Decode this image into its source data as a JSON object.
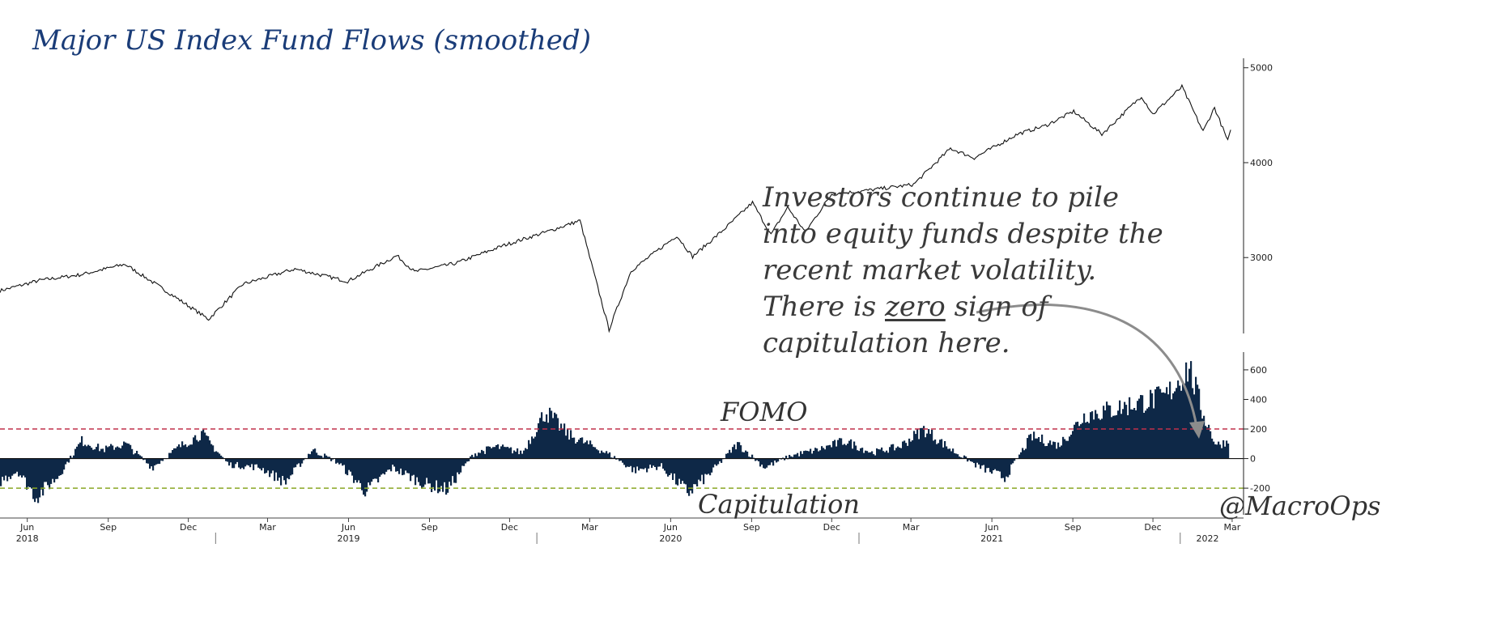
{
  "title": "Major US Index Fund Flows (smoothed)",
  "annotation": {
    "line1": "Investors continue to pile",
    "line2": "into equity funds despite the",
    "line3": "recent market volatility.",
    "line4_pre": "There is ",
    "line4_em": "zero",
    "line4_post": " sign of",
    "line5": "capitulation here."
  },
  "labels": {
    "fomo": "FOMO",
    "capitulation": "Capitulation",
    "handle": "@MacroOps"
  },
  "colors": {
    "price_line": "#111111",
    "flow_bars": "#0e2847",
    "fomo_line": "#c0304a",
    "capitulation_line": "#8aa824",
    "title": "#1a3c78",
    "arrow": "#8c8c8c"
  },
  "chart_data": [
    {
      "type": "line",
      "series": [
        {
          "x": [
            "2018-05-01",
            "2018-06-15",
            "2018-08-01",
            "2018-09-20",
            "2018-10-25",
            "2018-12-24",
            "2019-02-01",
            "2019-04-01",
            "2019-05-31",
            "2019-07-26",
            "2019-08-15",
            "2019-10-01",
            "2019-11-25",
            "2020-01-15",
            "2020-02-19",
            "2020-03-23",
            "2020-04-17",
            "2020-06-08",
            "2020-06-26",
            "2020-08-01",
            "2020-09-02",
            "2020-09-23",
            "2020-10-12",
            "2020-11-01",
            "2020-12-01",
            "2021-01-04",
            "2021-03-04",
            "2021-04-15",
            "2021-05-12",
            "2021-06-30",
            "2021-08-01",
            "2021-09-02",
            "2021-10-04",
            "2021-11-18",
            "2021-12-01",
            "2022-01-03",
            "2022-01-27",
            "2022-02-09",
            "2022-02-24",
            "2022-03-01"
          ],
          "values": [
            2650,
            2760,
            2820,
            2930,
            2720,
            2350,
            2720,
            2880,
            2750,
            3020,
            2850,
            2940,
            3130,
            3280,
            3390,
            2240,
            2860,
            3230,
            3010,
            3300,
            3580,
            3240,
            3530,
            3270,
            3670,
            3700,
            3770,
            4150,
            4050,
            4300,
            4390,
            4540,
            4300,
            4700,
            4510,
            4800,
            4330,
            4580,
            4230,
            4380
          ]
        }
      ],
      "ylim": [
        2200,
        5100
      ],
      "yticks": [
        3000,
        4000,
        5000
      ]
    },
    {
      "type": "bar",
      "series": [
        {
          "x": [
            "2018-05-01",
            "2018-05-20",
            "2018-06-10",
            "2018-07-05",
            "2018-08-01",
            "2018-08-25",
            "2018-09-20",
            "2018-10-20",
            "2018-11-20",
            "2018-12-15",
            "2019-01-15",
            "2019-02-20",
            "2019-03-20",
            "2019-04-20",
            "2019-05-20",
            "2019-06-20",
            "2019-07-20",
            "2019-08-25",
            "2019-09-20",
            "2019-10-20",
            "2019-11-15",
            "2019-12-15",
            "2020-01-10",
            "2020-02-05",
            "2020-03-05",
            "2020-03-25",
            "2020-04-20",
            "2020-05-20",
            "2020-06-20",
            "2020-07-15",
            "2020-08-15",
            "2020-09-15",
            "2020-10-15",
            "2020-11-15",
            "2020-12-15",
            "2021-01-15",
            "2021-02-15",
            "2021-03-15",
            "2021-04-15",
            "2021-05-15",
            "2021-06-15",
            "2021-07-15",
            "2021-08-15",
            "2021-09-15",
            "2021-10-15",
            "2021-11-15",
            "2021-12-15",
            "2022-01-10",
            "2022-01-25",
            "2022-02-10",
            "2022-02-25"
          ],
          "values": [
            -150,
            -80,
            -260,
            -120,
            120,
            60,
            100,
            -60,
            80,
            170,
            -40,
            -60,
            -160,
            60,
            -30,
            -220,
            -60,
            -170,
            -210,
            30,
            80,
            40,
            320,
            160,
            80,
            20,
            -80,
            -50,
            -230,
            -100,
            100,
            -60,
            20,
            60,
            120,
            40,
            80,
            200,
            60,
            -50,
            -130,
            150,
            90,
            300,
            330,
            380,
            420,
            620,
            320,
            90,
            120
          ]
        }
      ],
      "ylim": [
        -380,
        720
      ],
      "yticks": [
        -200,
        0,
        200,
        400,
        600
      ],
      "thresholds": [
        200,
        -200
      ]
    }
  ],
  "x_axis": {
    "month_labels": [
      "Jun",
      "Sep",
      "Dec",
      "Mar",
      "Jun",
      "Sep",
      "Dec",
      "Mar",
      "Jun",
      "Sep",
      "Dec",
      "Mar",
      "Jun",
      "Sep",
      "Dec",
      "Mar"
    ],
    "month_dates": [
      "2018-06-01",
      "2018-09-01",
      "2018-12-01",
      "2019-03-01",
      "2019-06-01",
      "2019-09-01",
      "2019-12-01",
      "2020-03-01",
      "2020-06-01",
      "2020-09-01",
      "2020-12-01",
      "2021-03-01",
      "2021-06-01",
      "2021-09-01",
      "2021-12-01",
      "2022-03-01"
    ],
    "year_labels": [
      "2018",
      "2019",
      "2020",
      "2021",
      "2022"
    ],
    "year_dates": [
      "2018-06-01",
      "2019-06-01",
      "2020-06-01",
      "2021-06-01",
      "2022-02-01"
    ]
  }
}
